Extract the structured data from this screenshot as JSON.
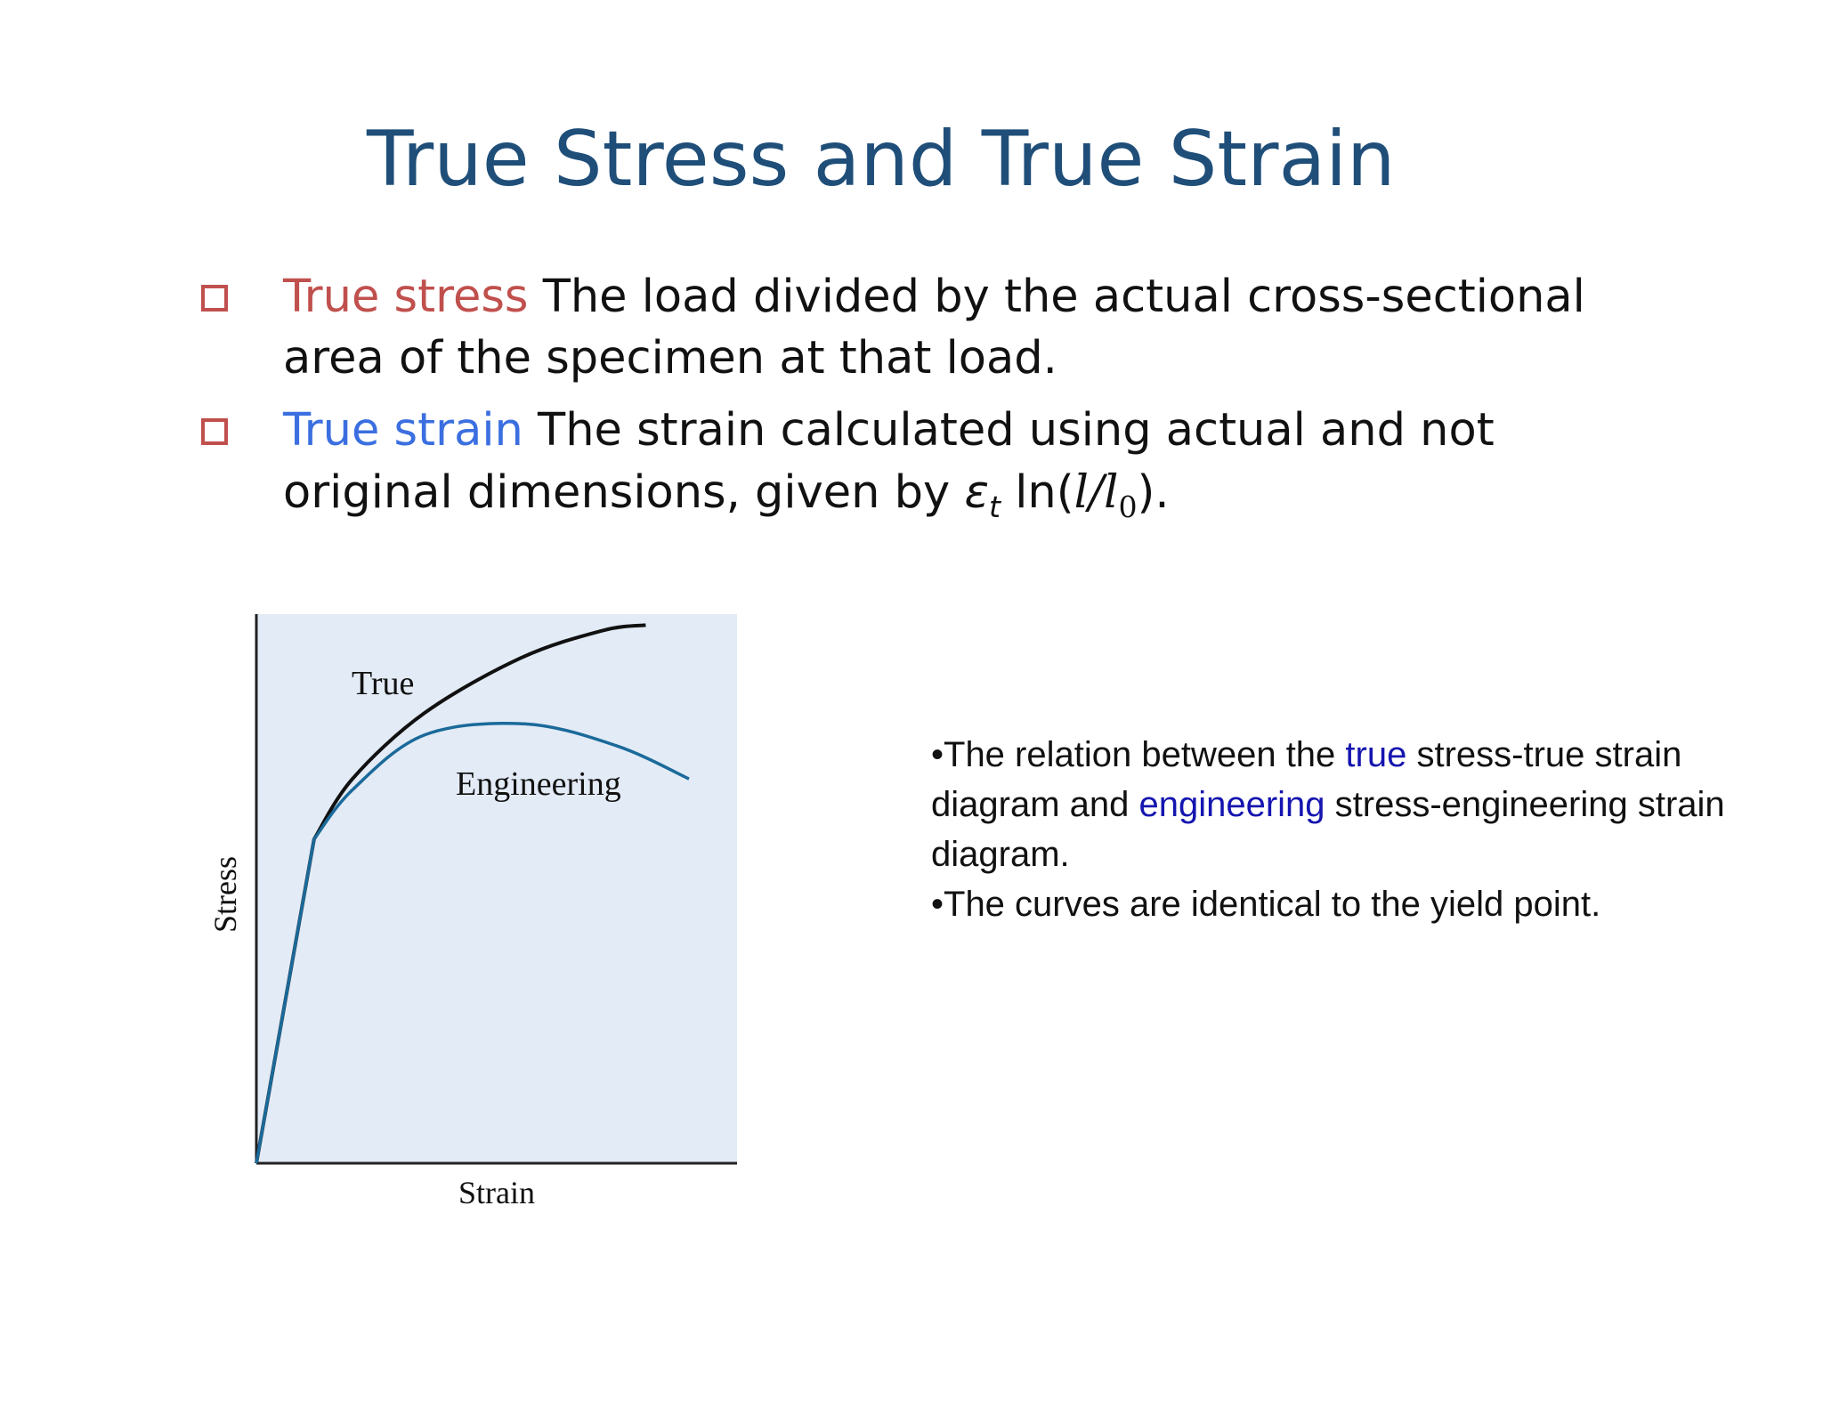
{
  "slide": {
    "title": "True Stress and True Strain",
    "bullets": [
      {
        "term": "True stress",
        "line1": " The load divided by the actual cross-sectional",
        "line2": "area of the specimen at that load."
      },
      {
        "term": "True strain",
        "line1": " The strain calculated using actual and not",
        "line2_prefix": "original dimensions, given by ",
        "eps_symbol": "ε",
        "eps_sub": "t",
        "ln": " ln(",
        "l": "l",
        "slash": "/",
        "l0": "l",
        "l0_sub": "0",
        "close": ")."
      }
    ],
    "note": {
      "p1_a": "•The relation between the ",
      "p1_true": "true",
      "p1_b": " stress-true strain diagram and ",
      "p1_eng": "engineering",
      "p1_c": " stress-engineering strain diagram.",
      "p2": "•The curves are identical to the yield point."
    }
  },
  "chart_data": {
    "type": "line",
    "xlabel": "Strain",
    "ylabel": "Stress",
    "background": "#e3ebf6",
    "series": [
      {
        "name": "True",
        "color": "#111111",
        "x": [
          0,
          0.12,
          0.2,
          0.35,
          0.55,
          0.72,
          0.81
        ],
        "y": [
          0,
          0.59,
          0.7,
          0.82,
          0.92,
          0.97,
          0.98
        ]
      },
      {
        "name": "Engineering",
        "color": "#1a6a9a",
        "x": [
          0,
          0.12,
          0.2,
          0.35,
          0.56,
          0.75,
          0.9
        ],
        "y": [
          0,
          0.59,
          0.68,
          0.78,
          0.8,
          0.76,
          0.7
        ]
      }
    ],
    "xlim": [
      0,
      1
    ],
    "ylim": [
      0,
      1
    ],
    "grid": false
  }
}
